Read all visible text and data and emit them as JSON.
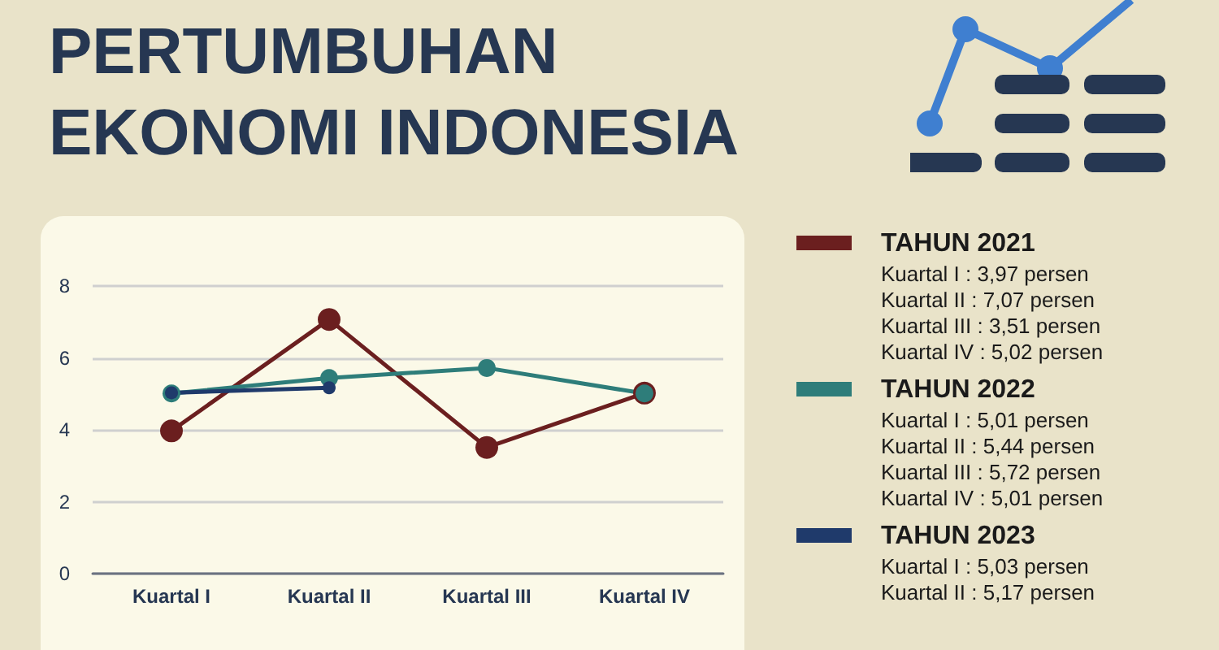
{
  "chart_data": {
    "type": "line",
    "title": "PERTUMBUHAN EKONOMI INDONESIA",
    "categories": [
      "Kuartal I",
      "Kuartal II",
      "Kuartal III",
      "Kuartal IV"
    ],
    "ylim": [
      0,
      8
    ],
    "yticks": [
      0,
      2,
      4,
      6,
      8
    ],
    "grid": "y",
    "legend": "right",
    "marker": "circle",
    "line_style": "solid",
    "series": [
      {
        "name": "TAHUN 2021",
        "color": "#6b1f1f",
        "values": [
          3.97,
          7.07,
          3.51,
          5.02
        ]
      },
      {
        "name": "TAHUN 2022",
        "color": "#2e7d7a",
        "values": [
          5.01,
          5.44,
          5.72,
          5.01
        ]
      },
      {
        "name": "TAHUN 2023",
        "color": "#1f3a6b",
        "values": [
          5.03,
          5.17,
          null,
          null
        ]
      }
    ],
    "annotations": [
      "Kuartal I : 3,97 persen",
      "Kuartal II : 7,07 persen",
      "Kuartal III : 3,51 persen",
      "Kuartal IV : 5,02 persen",
      "Kuartal I : 5,01 persen",
      "Kuartal II : 5,44 persen",
      "Kuartal III : 5,72 persen",
      "Kuartal IV : 5,01 persen",
      "Kuartal I : 5,03 persen",
      "Kuartal II : 5,17 persen"
    ]
  }
}
